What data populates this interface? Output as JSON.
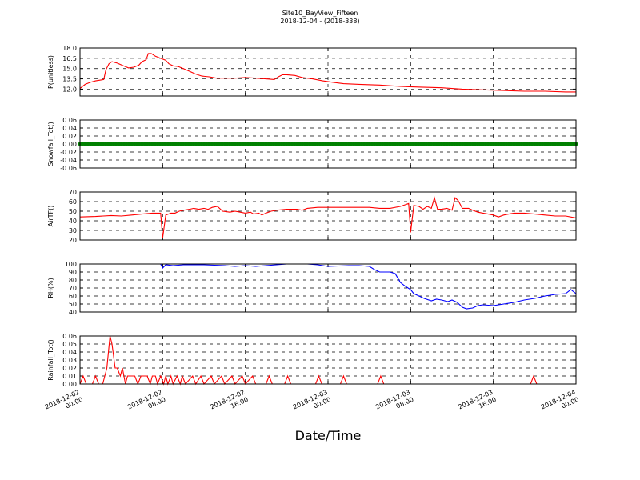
{
  "title": "Site10_BayView_Fifteen",
  "subtitle": "2018-12-04 - (2018-338)",
  "xlabel": "Date/Time",
  "x_ticks": [
    {
      "t": 0,
      "l1": "2018-12-02",
      "l2": "00:00"
    },
    {
      "t": 8,
      "l1": "2018-12-02",
      "l2": "08:00"
    },
    {
      "t": 16,
      "l1": "2018-12-02",
      "l2": "16:00"
    },
    {
      "t": 24,
      "l1": "2018-12-03",
      "l2": "00:00"
    },
    {
      "t": 32,
      "l1": "2018-12-03",
      "l2": "08:00"
    },
    {
      "t": 40,
      "l1": "2018-12-03",
      "l2": "16:00"
    },
    {
      "t": 48,
      "l1": "2018-12-04",
      "l2": "00:00"
    }
  ],
  "chart_data": [
    {
      "type": "line",
      "ylabel": "P(unitless)",
      "ylim": [
        11,
        18
      ],
      "yticks": [
        "12.0",
        "13.5",
        "15.0",
        "16.5",
        "18.0"
      ],
      "ytick_values": [
        12,
        13.5,
        15,
        16.5,
        18
      ],
      "color": "#ff0000",
      "marker": "none",
      "x_unit": "hours since 2018-12-02 00:00",
      "points": [
        [
          0,
          12.1
        ],
        [
          0.5,
          12.7
        ],
        [
          1,
          13.0
        ],
        [
          1.5,
          13.2
        ],
        [
          2.3,
          13.4
        ],
        [
          2.5,
          14.8
        ],
        [
          2.8,
          15.7
        ],
        [
          3.1,
          16.0
        ],
        [
          3.6,
          15.8
        ],
        [
          4.2,
          15.4
        ],
        [
          4.7,
          15.1
        ],
        [
          5.2,
          15.2
        ],
        [
          5.7,
          15.5
        ],
        [
          6,
          16.0
        ],
        [
          6.4,
          16.3
        ],
        [
          6.6,
          17.2
        ],
        [
          6.9,
          17.2
        ],
        [
          7.3,
          16.8
        ],
        [
          7.8,
          16.5
        ],
        [
          8.3,
          16.2
        ],
        [
          8.6,
          15.7
        ],
        [
          9,
          15.4
        ],
        [
          9.5,
          15.3
        ],
        [
          10,
          15.0
        ],
        [
          10.6,
          14.6
        ],
        [
          11.2,
          14.2
        ],
        [
          11.8,
          13.9
        ],
        [
          12.5,
          13.8
        ],
        [
          13.2,
          13.6
        ],
        [
          14,
          13.6
        ],
        [
          15,
          13.6
        ],
        [
          16,
          13.7
        ],
        [
          17,
          13.6
        ],
        [
          18,
          13.5
        ],
        [
          18.8,
          13.4
        ],
        [
          19.2,
          13.8
        ],
        [
          19.6,
          14.1
        ],
        [
          20,
          14.1
        ],
        [
          20.8,
          14.0
        ],
        [
          21.5,
          13.7
        ],
        [
          22.5,
          13.5
        ],
        [
          23.5,
          13.2
        ],
        [
          24.5,
          13.0
        ],
        [
          25.5,
          12.8
        ],
        [
          27,
          12.7
        ],
        [
          29,
          12.6
        ],
        [
          31,
          12.4
        ],
        [
          33,
          12.3
        ],
        [
          35,
          12.2
        ],
        [
          37,
          12.0
        ],
        [
          39,
          11.9
        ],
        [
          41,
          11.8
        ],
        [
          43,
          11.7
        ],
        [
          45,
          11.7
        ],
        [
          47,
          11.6
        ],
        [
          48,
          11.6
        ]
      ]
    },
    {
      "type": "scatter",
      "ylabel": "Snowfall_Tot()",
      "ylim": [
        -0.06,
        0.06
      ],
      "yticks": [
        "-0.06",
        "-0.04",
        "-0.02",
        "0.00",
        "0.02",
        "0.04",
        "0.06"
      ],
      "ytick_values": [
        -0.06,
        -0.04,
        -0.02,
        0,
        0.02,
        0.04,
        0.06
      ],
      "color": "#008000",
      "marker": "circle",
      "x_unit": "hours since 2018-12-02 00:00",
      "x_range": [
        0,
        48
      ],
      "x_step": 0.25,
      "constant_value": 0
    },
    {
      "type": "line",
      "ylabel": "AirTF()",
      "ylim": [
        20,
        70
      ],
      "yticks": [
        "20",
        "30",
        "40",
        "50",
        "60",
        "70"
      ],
      "ytick_values": [
        20,
        30,
        40,
        50,
        60,
        70
      ],
      "color": "#ff0000",
      "marker": "none",
      "x_unit": "hours since 2018-12-02 00:00",
      "points": [
        [
          0,
          44
        ],
        [
          1.5,
          44.5
        ],
        [
          3,
          45.5
        ],
        [
          4,
          45
        ],
        [
          5,
          46
        ],
        [
          6,
          47
        ],
        [
          7,
          48
        ],
        [
          7.8,
          48
        ],
        [
          8,
          22
        ],
        [
          8.3,
          46
        ],
        [
          8.8,
          48
        ],
        [
          9.2,
          48
        ],
        [
          9.6,
          50
        ],
        [
          10,
          51
        ],
        [
          10.6,
          52
        ],
        [
          11,
          53
        ],
        [
          11.5,
          52
        ],
        [
          12,
          53
        ],
        [
          12.4,
          52
        ],
        [
          12.8,
          54
        ],
        [
          13.3,
          55
        ],
        [
          13.8,
          50
        ],
        [
          14.5,
          49
        ],
        [
          15,
          50
        ],
        [
          15.5,
          49
        ],
        [
          16,
          48
        ],
        [
          16.5,
          49
        ],
        [
          16.8,
          47
        ],
        [
          17.3,
          48
        ],
        [
          17.6,
          46
        ],
        [
          18,
          48
        ],
        [
          18.5,
          50
        ],
        [
          19,
          51
        ],
        [
          20,
          52
        ],
        [
          21,
          52
        ],
        [
          21.5,
          51
        ],
        [
          22,
          53
        ],
        [
          23,
          54
        ],
        [
          24,
          54
        ],
        [
          26,
          54
        ],
        [
          28,
          54
        ],
        [
          29,
          53
        ],
        [
          30,
          53
        ],
        [
          31,
          55
        ],
        [
          31.8,
          58
        ],
        [
          32,
          28
        ],
        [
          32.3,
          56
        ],
        [
          32.8,
          55
        ],
        [
          33.2,
          52
        ],
        [
          33.6,
          55
        ],
        [
          34,
          53
        ],
        [
          34.3,
          64
        ],
        [
          34.6,
          52
        ],
        [
          35,
          52
        ],
        [
          35.5,
          53
        ],
        [
          36,
          51
        ],
        [
          36.3,
          64
        ],
        [
          36.6,
          61
        ],
        [
          37,
          53
        ],
        [
          37.6,
          53
        ],
        [
          38,
          51
        ],
        [
          38.5,
          49
        ],
        [
          39,
          48
        ],
        [
          39.5,
          47
        ],
        [
          40,
          46
        ],
        [
          40.5,
          44
        ],
        [
          41,
          46
        ],
        [
          41.5,
          47
        ],
        [
          42,
          48
        ],
        [
          43,
          48
        ],
        [
          44,
          47
        ],
        [
          45,
          46
        ],
        [
          46,
          45
        ],
        [
          47,
          45
        ],
        [
          48,
          43
        ]
      ]
    },
    {
      "type": "line",
      "ylabel": "RH(%)",
      "ylim": [
        40,
        100
      ],
      "yticks": [
        "40",
        "50",
        "60",
        "70",
        "80",
        "90",
        "100"
      ],
      "ytick_values": [
        40,
        50,
        60,
        70,
        80,
        90,
        100
      ],
      "color": "#0000ff",
      "marker": "none",
      "x_unit": "hours since 2018-12-02 00:00",
      "points": [
        [
          0,
          100
        ],
        [
          7.8,
          100
        ],
        [
          8,
          95
        ],
        [
          8.3,
          99
        ],
        [
          9,
          98
        ],
        [
          10,
          99
        ],
        [
          12,
          99
        ],
        [
          14,
          98
        ],
        [
          15,
          97
        ],
        [
          16,
          98
        ],
        [
          17,
          97
        ],
        [
          18,
          98
        ],
        [
          20,
          100
        ],
        [
          22,
          100
        ],
        [
          23,
          99
        ],
        [
          24,
          97
        ],
        [
          26,
          98
        ],
        [
          27,
          98
        ],
        [
          28,
          97
        ],
        [
          28.5,
          93
        ],
        [
          29,
          90
        ],
        [
          30,
          90
        ],
        [
          30.5,
          88
        ],
        [
          31,
          77
        ],
        [
          31.5,
          72
        ],
        [
          32,
          68
        ],
        [
          32.3,
          63
        ],
        [
          32.8,
          60
        ],
        [
          33.3,
          57
        ],
        [
          34,
          54
        ],
        [
          34.5,
          56
        ],
        [
          35,
          55
        ],
        [
          35.6,
          53
        ],
        [
          36,
          55
        ],
        [
          36.5,
          52
        ],
        [
          37,
          46
        ],
        [
          37.4,
          44
        ],
        [
          38,
          45
        ],
        [
          38.5,
          48
        ],
        [
          39,
          49
        ],
        [
          40,
          48
        ],
        [
          41,
          50
        ],
        [
          42,
          52
        ],
        [
          43,
          55
        ],
        [
          44,
          57
        ],
        [
          45,
          60
        ],
        [
          46,
          62
        ],
        [
          47,
          63
        ],
        [
          47.5,
          68
        ],
        [
          48,
          63
        ]
      ]
    },
    {
      "type": "line",
      "ylabel": "Rainfall_Tot()",
      "ylim": [
        0,
        0.06
      ],
      "yticks": [
        "0.00",
        "0.01",
        "0.02",
        "0.03",
        "0.04",
        "0.05",
        "0.06"
      ],
      "ytick_values": [
        0,
        0.01,
        0.02,
        0.03,
        0.04,
        0.05,
        0.06
      ],
      "color": "#ff0000",
      "marker": "none",
      "x_unit": "hours since 2018-12-02 00:00",
      "points": [
        [
          0,
          0
        ],
        [
          0.3,
          0.01
        ],
        [
          0.6,
          0
        ],
        [
          1.2,
          0
        ],
        [
          1.5,
          0.01
        ],
        [
          1.8,
          0
        ],
        [
          2.2,
          0
        ],
        [
          2.6,
          0.02
        ],
        [
          2.9,
          0.06
        ],
        [
          3.1,
          0.05
        ],
        [
          3.4,
          0.02
        ],
        [
          3.6,
          0.02
        ],
        [
          3.9,
          0.01
        ],
        [
          4.1,
          0.02
        ],
        [
          4.4,
          0
        ],
        [
          4.6,
          0.01
        ],
        [
          5.3,
          0.01
        ],
        [
          5.6,
          0
        ],
        [
          5.9,
          0.01
        ],
        [
          6.5,
          0.01
        ],
        [
          6.8,
          0
        ],
        [
          7,
          0.01
        ],
        [
          7.3,
          0.01
        ],
        [
          7.5,
          0
        ],
        [
          7.8,
          0.01
        ],
        [
          8.1,
          0
        ],
        [
          8.3,
          0.01
        ],
        [
          8.5,
          0
        ],
        [
          8.8,
          0.01
        ],
        [
          9,
          0
        ],
        [
          9.4,
          0.01
        ],
        [
          9.7,
          0
        ],
        [
          9.9,
          0.01
        ],
        [
          10.2,
          0
        ],
        [
          10.9,
          0.01
        ],
        [
          11.2,
          0
        ],
        [
          11.7,
          0.01
        ],
        [
          12,
          0
        ],
        [
          12.7,
          0.01
        ],
        [
          13,
          0
        ],
        [
          13.7,
          0.01
        ],
        [
          14,
          0
        ],
        [
          14.7,
          0.01
        ],
        [
          15,
          0
        ],
        [
          15.7,
          0.01
        ],
        [
          16,
          0
        ],
        [
          16.7,
          0.01
        ],
        [
          17,
          0
        ],
        [
          18,
          0
        ],
        [
          18.3,
          0.01
        ],
        [
          18.6,
          0
        ],
        [
          19.8,
          0
        ],
        [
          20.1,
          0.01
        ],
        [
          20.4,
          0
        ],
        [
          22.8,
          0
        ],
        [
          23.1,
          0.01
        ],
        [
          23.4,
          0
        ],
        [
          25.2,
          0
        ],
        [
          25.5,
          0.01
        ],
        [
          25.8,
          0
        ],
        [
          28.8,
          0
        ],
        [
          29.1,
          0.01
        ],
        [
          29.4,
          0
        ],
        [
          43.6,
          0
        ],
        [
          43.9,
          0.01
        ],
        [
          44.2,
          0
        ],
        [
          48,
          0
        ]
      ]
    }
  ]
}
